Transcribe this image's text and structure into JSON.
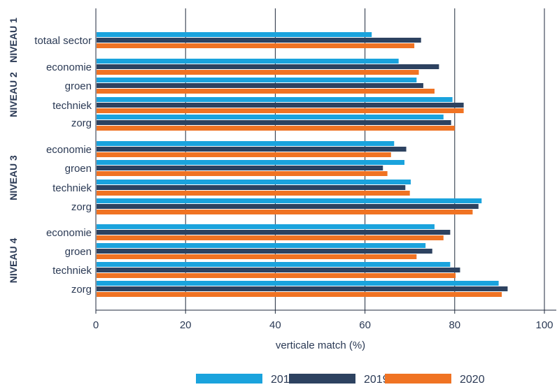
{
  "chart_data": {
    "type": "bar",
    "orientation": "horizontal",
    "xlabel": "verticale match (%)",
    "xlim": [
      0,
      100
    ],
    "xticks": [
      0,
      20,
      40,
      60,
      80,
      100
    ],
    "grid": "vertical",
    "legend_position": "bottom",
    "groups": [
      "NIVEAU 1",
      "NIVEAU 2",
      "NIVEAU 3",
      "NIVEAU 4"
    ],
    "categories": [
      {
        "group": 0,
        "label": "totaal sector"
      },
      {
        "group": 1,
        "label": "economie"
      },
      {
        "group": 1,
        "label": "groen"
      },
      {
        "group": 1,
        "label": "techniek"
      },
      {
        "group": 1,
        "label": "zorg"
      },
      {
        "group": 2,
        "label": "economie"
      },
      {
        "group": 2,
        "label": "groen"
      },
      {
        "group": 2,
        "label": "techniek"
      },
      {
        "group": 2,
        "label": "zorg"
      },
      {
        "group": 3,
        "label": "economie"
      },
      {
        "group": 3,
        "label": "groen"
      },
      {
        "group": 3,
        "label": "techniek"
      },
      {
        "group": 3,
        "label": "zorg"
      }
    ],
    "series": [
      {
        "name": "2018",
        "color": "#1aa3dd",
        "values": [
          61.5,
          67.5,
          71.5,
          79.5,
          77.5,
          66.5,
          68.8,
          70.2,
          86,
          75.5,
          73.5,
          79,
          89.8
        ]
      },
      {
        "name": "2019",
        "color": "#2d4260",
        "values": [
          72.5,
          76.5,
          73,
          82,
          79.2,
          69.2,
          64,
          69,
          85.3,
          79,
          75,
          81.2,
          91.8
        ]
      },
      {
        "name": "2020",
        "color": "#f07323",
        "values": [
          71,
          72,
          75.5,
          82,
          80,
          65.8,
          65,
          70,
          84,
          77.5,
          71.5,
          80.2,
          90.5
        ]
      }
    ]
  }
}
